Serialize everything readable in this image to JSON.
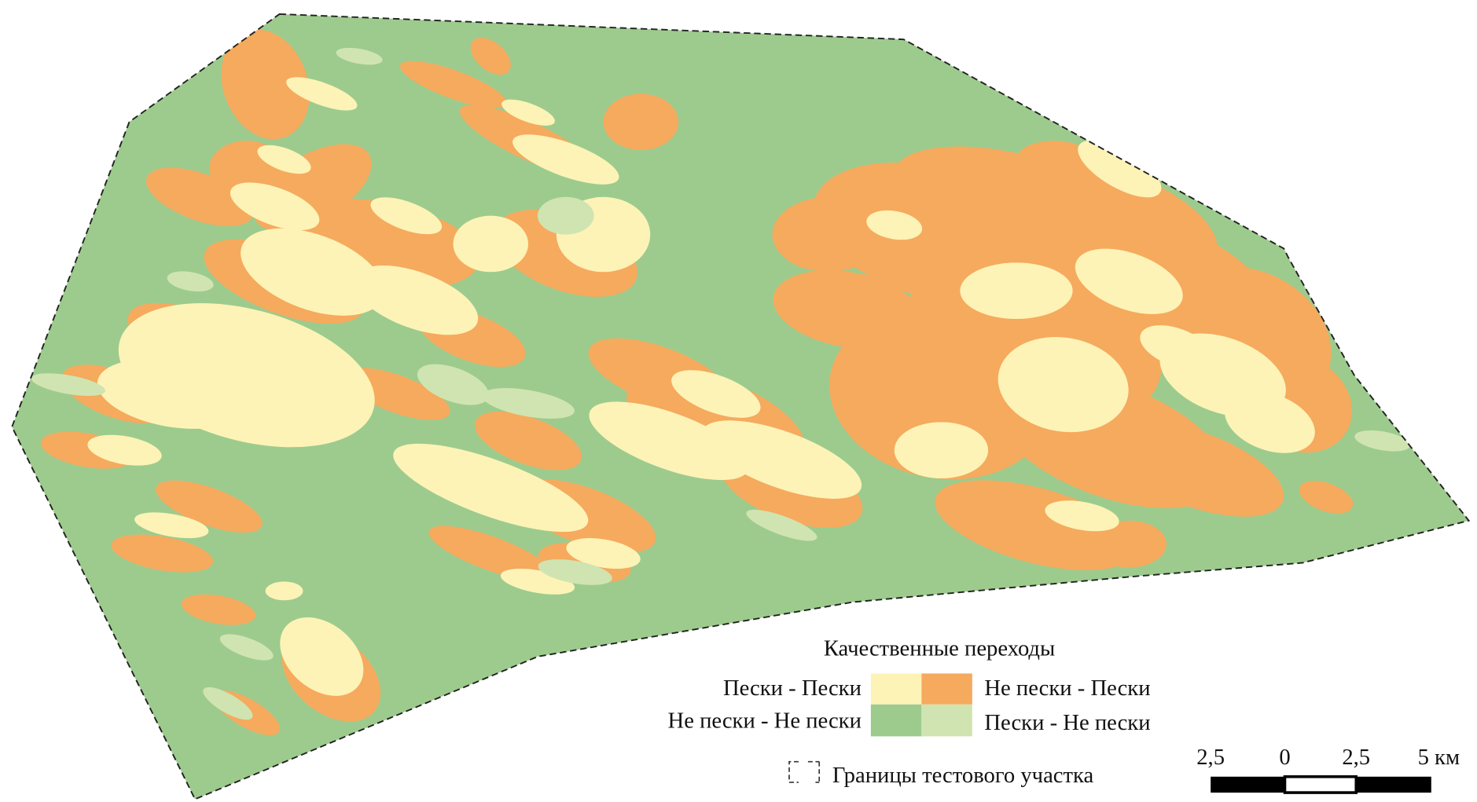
{
  "legend": {
    "title": "Качественные переходы",
    "items": [
      {
        "label": "Пески - Пески",
        "color": "#fdf3b6"
      },
      {
        "label": "Не пески - Пески",
        "color": "#f5aa5e"
      },
      {
        "label": "Не пески - Не пески",
        "color": "#9dcb8e"
      },
      {
        "label": "Пески - Не пески",
        "color": "#d0e4b1"
      }
    ],
    "boundary_label": "Границы тестового участка"
  },
  "scale_bar": {
    "labels": [
      "2,5",
      "0",
      "2,5",
      "5 км"
    ]
  }
}
